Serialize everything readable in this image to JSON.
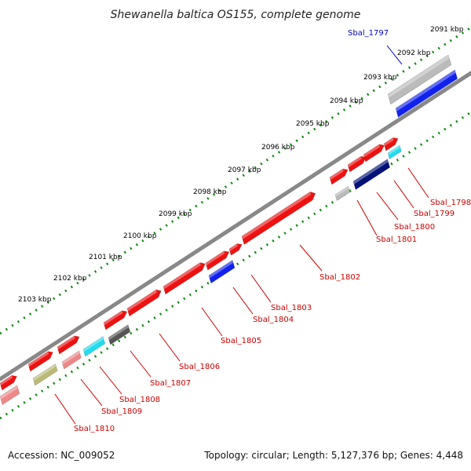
{
  "title": "Shewanella baltica OS155, complete genome",
  "footer": {
    "accession": "Accession: NC_009052",
    "summary": "Topology: circular; Length: 5,127,376 bp; Genes: 4,448"
  },
  "ticks": [
    "2091 kbp",
    "2092 kbp",
    "2093 kbp",
    "2094 kbp",
    "2095 kbp",
    "2096 kbp",
    "2097 kbp",
    "2098 kbp",
    "2099 kbp",
    "2100 kbp",
    "2101 kbp",
    "2102 kbp",
    "2103 kbp"
  ],
  "genes": [
    {
      "name": "Sbal_1797",
      "color": "#0000cc"
    },
    {
      "name": "Sbal_1798",
      "color": "#cc0000"
    },
    {
      "name": "Sbal_1799",
      "color": "#cc0000"
    },
    {
      "name": "Sbal_1800",
      "color": "#cc0000"
    },
    {
      "name": "Sbal_1801",
      "color": "#cc0000"
    },
    {
      "name": "Sbal_1802",
      "color": "#cc0000"
    },
    {
      "name": "Sbal_1803",
      "color": "#cc0000"
    },
    {
      "name": "Sbal_1804",
      "color": "#cc0000"
    },
    {
      "name": "Sbal_1805",
      "color": "#cc0000"
    },
    {
      "name": "Sbal_1806",
      "color": "#cc0000"
    },
    {
      "name": "Sbal_1807",
      "color": "#cc0000"
    },
    {
      "name": "Sbal_1808",
      "color": "#cc0000"
    },
    {
      "name": "Sbal_1809",
      "color": "#cc0000"
    },
    {
      "name": "Sbal_1810",
      "color": "#cc0000"
    }
  ],
  "colors": {
    "red": "#ee1111",
    "blue": "#1122ee",
    "navy": "#001177",
    "cyan": "#22ddee",
    "gray": "#bbbbbb",
    "darkgray": "#555555",
    "pink": "#ee8888",
    "olive": "#bbbb77",
    "dots": "#118811",
    "backbone": "#888888"
  }
}
